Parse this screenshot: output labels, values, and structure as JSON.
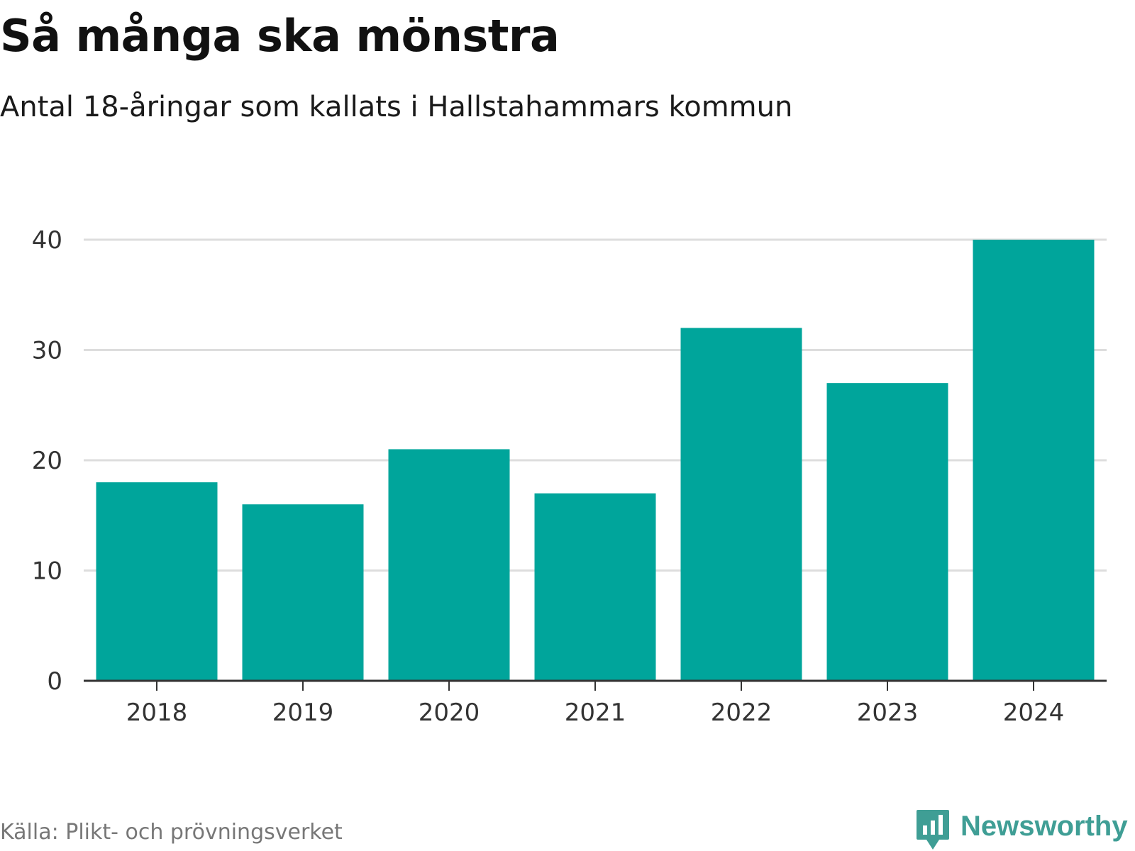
{
  "header": {
    "title": "Så många ska mönstra",
    "subtitle": "Antal 18-åringar som kallats i Hallstahammars kommun"
  },
  "footer": {
    "source": "Källa: Plikt- och prövningsverket",
    "brand": "Newsworthy",
    "brand_icon": "bar-chart-speech-bubble-icon"
  },
  "colors": {
    "bar": "#00a59b",
    "gridline": "#dddddd",
    "axis": "#333333",
    "brand": "#3f9e95"
  },
  "chart_data": {
    "type": "bar",
    "title": "Så många ska mönstra",
    "subtitle": "Antal 18-åringar som kallats i Hallstahammars kommun",
    "categories": [
      "2018",
      "2019",
      "2020",
      "2021",
      "2022",
      "2023",
      "2024"
    ],
    "values": [
      18,
      16,
      21,
      17,
      32,
      27,
      40
    ],
    "xlabel": "",
    "ylabel": "",
    "ylim": [
      0,
      40
    ],
    "yticks": [
      0,
      10,
      20,
      30,
      40
    ],
    "grid": true,
    "legend": "none"
  }
}
